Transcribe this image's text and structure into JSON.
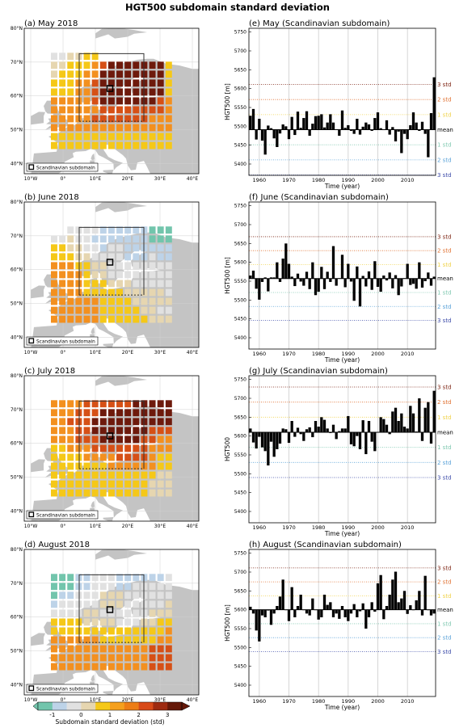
{
  "figure_title": "HGT500 subdomain standard deviation",
  "chart_data": [
    {
      "id": "a",
      "type": "heatmap",
      "title": "(a) May 2018",
      "xticks": [
        "10°W",
        "0°",
        "10°E",
        "20°E",
        "30°E",
        "40°E"
      ],
      "yticks": [
        "40°N",
        "50°N",
        "60°N",
        "70°N",
        "80°N"
      ],
      "legend": "Scandinavian subdomain",
      "grid_rows": [
        "ccddee.........",
        "ddeeefghhhhhhhe",
        "deeeffhhhhhhhhe",
        "eeeffghhhhhhhhe",
        "eeeffghhhhhhhhe",
        "fffffghhhhhhhgf",
        "ffffffggggggggf",
        "fffffgggggggfff",
        "fffffffffffffff",
        "eeeeeeeeeeeeeee",
        "eeeeeeeeeeeeeee"
      ]
    },
    {
      "id": "f1",
      "type": "bar",
      "title": "(e) May (Scandinavian subdomain)",
      "xlabel": "Time (year)",
      "ylabel": "HGT500 [m]",
      "ylim": [
        5370,
        5760
      ],
      "yticks": [
        5400,
        5450,
        5500,
        5550,
        5600,
        5650,
        5700,
        5750
      ],
      "xlim": [
        1957,
        2019
      ],
      "xticks": [
        1960,
        1970,
        1980,
        1990,
        2000,
        2010
      ],
      "mean": 5491,
      "std": 40,
      "std_labels": [
        "3 std",
        "2 std",
        "1 std",
        "mean",
        "1 std",
        "2 std",
        "3 std"
      ],
      "series": [
        {
          "values": [
            5528,
            5546,
            5465,
            5520,
            5462,
            5425,
            5502,
            5495,
            5468,
            5445,
            5481,
            5505,
            5500,
            5466,
            5525,
            5477,
            5539,
            5496,
            5522,
            5540,
            5475,
            5507,
            5527,
            5528,
            5532,
            5497,
            5510,
            5532,
            5510,
            5492,
            5475,
            5542,
            5496,
            5503,
            5488,
            5480,
            5520,
            5478,
            5499,
            5510,
            5505,
            5488,
            5522,
            5537,
            5495,
            5492,
            5516,
            5478,
            5498,
            5460,
            5486,
            5429,
            5480,
            5466,
            5503,
            5537,
            5510,
            5488,
            5512,
            5480,
            5418,
            5535,
            5630
          ]
        }
      ]
    },
    {
      "id": "b",
      "type": "heatmap",
      "title": "(b) June 2018",
      "xticks": [
        "10°W",
        "0°",
        "10°E",
        "20°E",
        "30°E",
        "40°E"
      ],
      "yticks": [
        "40°N",
        "50°N",
        "60°N",
        "70°N",
        "80°N"
      ],
      "legend": "Scandinavian subdomain",
      "grid_rows": [
        "..ccccbbbbbbaaa",
        "ccdccbbbbbbbaaa",
        "eeddccbccbbbbbb",
        "eeeddccccbbbcbb",
        "fffeeddcccccccc",
        "ffffeddcccccccc",
        "ffffeeedddccccc",
        "ffffeeeeedddddc",
        "ffffffeeeeddddd",
        "ffffffeeeeeddcc",
        "ffffffeeeeeeddd"
      ]
    },
    {
      "id": "f2",
      "type": "bar",
      "title": "(f) June (Scandinavian subdomain)",
      "xlabel": "Time (year)",
      "ylabel": "HGT500 [m]",
      "ylim": [
        5370,
        5760
      ],
      "yticks": [
        5400,
        5450,
        5500,
        5550,
        5600,
        5650,
        5700,
        5750
      ],
      "xlim": [
        1957,
        2019
      ],
      "xticks": [
        1960,
        1970,
        1980,
        1990,
        2000,
        2010
      ],
      "mean": 5557,
      "std": 37,
      "std_labels": [
        "3 std",
        "2 std",
        "1 std",
        "mean",
        "1 std",
        "2 std",
        "3 std"
      ],
      "series": [
        {
          "values": [
            5565,
            5578,
            5530,
            5501,
            5548,
            5560,
            5523,
            5560,
            5560,
            5600,
            5548,
            5610,
            5650,
            5596,
            5562,
            5537,
            5570,
            5549,
            5538,
            5575,
            5529,
            5600,
            5513,
            5522,
            5588,
            5529,
            5575,
            5548,
            5643,
            5538,
            5558,
            5620,
            5534,
            5596,
            5549,
            5498,
            5589,
            5483,
            5564,
            5536,
            5576,
            5527,
            5603,
            5535,
            5522,
            5565,
            5552,
            5573,
            5531,
            5566,
            5513,
            5536,
            5558,
            5596,
            5540,
            5543,
            5530,
            5600,
            5533,
            5550,
            5573,
            5538,
            5562
          ]
        }
      ]
    },
    {
      "id": "c",
      "type": "heatmap",
      "title": "(c) July 2018",
      "xticks": [
        "10°W",
        "0°",
        "10°E",
        "20°E",
        "30°E",
        "40°E"
      ],
      "yticks": [
        "40°N",
        "50°N",
        "60°N",
        "70°N",
        "80°N"
      ],
      "legend": "Scandinavian subdomain",
      "grid_rows": [
        "ffffgggggghhhhh",
        "fffggghhhhhhhhh",
        "ffggghhhhhhhhhh",
        "fffgghhhhhhhggg",
        "fffggghhhhhggff",
        "eefffgggggggfff",
        "eeeeffffggggfee",
        "eeeeeeeffffffee",
        "eeeeeeeeeeeeedd",
        "eeeeeeeeeeeeddd",
        "eeeeeeeeeeeeddd"
      ]
    },
    {
      "id": "f3",
      "type": "bar",
      "title": "(g) July (Scandinavian subdomain)",
      "xlabel": "Time (year)",
      "ylabel": "HGT500",
      "ylim": [
        5370,
        5760
      ],
      "yticks": [
        5400,
        5450,
        5500,
        5550,
        5600,
        5650,
        5700,
        5750
      ],
      "xlim": [
        1957,
        2019
      ],
      "xticks": [
        1960,
        1970,
        1980,
        1990,
        2000,
        2010
      ],
      "mean": 5610,
      "std": 40,
      "std_labels": [
        "3 std",
        "2 std",
        "1 std",
        "mean",
        "1 std",
        "2 std",
        "3 std"
      ],
      "series": [
        {
          "values": [
            5620,
            5583,
            5567,
            5598,
            5570,
            5560,
            5522,
            5585,
            5545,
            5565,
            5580,
            5620,
            5618,
            5582,
            5640,
            5598,
            5622,
            5605,
            5587,
            5618,
            5623,
            5597,
            5640,
            5625,
            5650,
            5643,
            5620,
            5608,
            5630,
            5592,
            5613,
            5620,
            5620,
            5653,
            5578,
            5573,
            5600,
            5565,
            5642,
            5552,
            5640,
            5585,
            5560,
            5610,
            5650,
            5645,
            5630,
            5605,
            5665,
            5675,
            5640,
            5660,
            5625,
            5620,
            5680,
            5660,
            5612,
            5700,
            5587,
            5675,
            5690,
            5580,
            5720
          ]
        }
      ]
    },
    {
      "id": "d",
      "type": "heatmap",
      "title": "(d) August 2018",
      "xticks": [
        "10°W",
        "0°",
        "10°E",
        "20°E",
        "30°E",
        "40°E"
      ],
      "yticks": [
        "40°N",
        "50°N",
        "60°N",
        "70°N",
        "80°N"
      ],
      "legend": "Scandinavian subdomain",
      "grid_rows": [
        "aaabbcccbbbbbbc",
        "aaabbcccbbccccc",
        "abbcccdddcccccc",
        "bcccccdddcccccd",
        "ccccddccccccddd",
        "eeeeddddcccddee",
        "eeeeeeeeeeeeeef",
        "ffffffeeeeeeeff",
        "ffffffffffffggg",
        "ffffffffffffggg",
        "ffffffffffffggg"
      ]
    },
    {
      "id": "f4",
      "type": "bar",
      "title": "(h) August (Scandinavian subdomain)",
      "xlabel": "Time (year)",
      "ylabel": "HGT500 [m]",
      "ylim": [
        5370,
        5760
      ],
      "yticks": [
        5400,
        5450,
        5500,
        5550,
        5600,
        5650,
        5700,
        5750
      ],
      "xlim": [
        1957,
        2019
      ],
      "xticks": [
        1960,
        1970,
        1980,
        1990,
        2000,
        2010
      ],
      "mean": 5600,
      "std": 37,
      "std_labels": [
        "3 std",
        "2 std",
        "1 std",
        "mean",
        "1 std",
        "2 std",
        "3 std"
      ],
      "series": [
        {
          "values": [
            5608,
            5590,
            5545,
            5516,
            5585,
            5580,
            5598,
            5560,
            5590,
            5610,
            5635,
            5680,
            5600,
            5570,
            5660,
            5580,
            5610,
            5640,
            5600,
            5590,
            5585,
            5630,
            5600,
            5574,
            5580,
            5640,
            5613,
            5620,
            5580,
            5590,
            5576,
            5610,
            5580,
            5570,
            5590,
            5615,
            5580,
            5596,
            5617,
            5550,
            5580,
            5620,
            5595,
            5670,
            5692,
            5575,
            5610,
            5640,
            5680,
            5701,
            5620,
            5630,
            5650,
            5589,
            5612,
            5600,
            5625,
            5650,
            5585,
            5690,
            5600,
            5585,
            5590
          ]
        }
      ]
    }
  ],
  "colorbar": {
    "ticks": [
      "-1",
      "0",
      "1",
      "2",
      "3"
    ],
    "label": "Subdomain standard deviation (std)",
    "colors": [
      "#72c5ac",
      "#bdd3e8",
      "#e1e1e1",
      "#e6d6b0",
      "#f5c818",
      "#f5a01e",
      "#ed7d16",
      "#d84a18",
      "#9e2a10",
      "#651808"
    ]
  },
  "cell_colors": {
    "a": "#72c5ac",
    "b": "#bdd3e8",
    "c": "#e1e1e1",
    "d": "#e6d6b0",
    "e": "#f5c818",
    "f": "#f3901f",
    "g": "#d65016",
    "h": "#6e1a0c"
  },
  "std_line_colors": [
    "#7a1e0c",
    "#e07030",
    "#f0d24a",
    "#000000",
    "#7fc8b0",
    "#5aa2d8",
    "#3b4aa8"
  ]
}
